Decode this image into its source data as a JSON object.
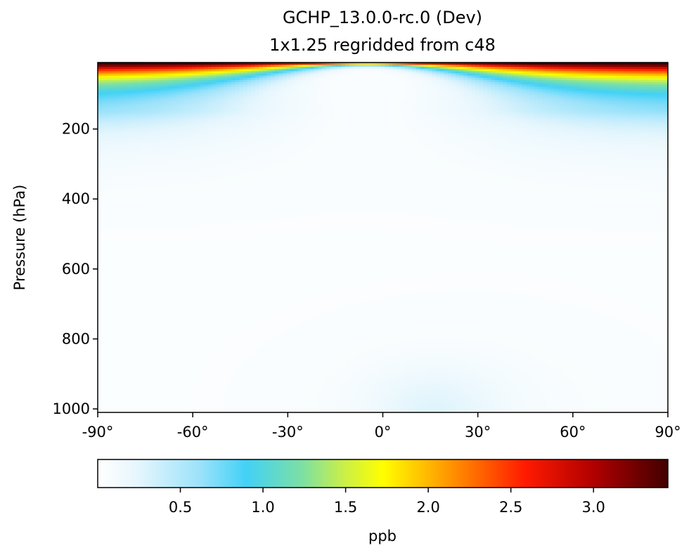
{
  "chart_data": {
    "type": "heatmap",
    "title": "GCHP_13.0.0-rc.0 (Dev)",
    "subtitle": "1x1.25 regridded from c48",
    "ylabel": "Pressure (hPa)",
    "xlabel": "",
    "xlim": [
      -90,
      90
    ],
    "ylim": [
      1010,
      10
    ],
    "x_ticks": [
      -90,
      -60,
      -30,
      0,
      30,
      60,
      90
    ],
    "x_tick_labels": [
      "-90°",
      "-60°",
      "-30°",
      "0°",
      "30°",
      "60°",
      "90°"
    ],
    "y_ticks": [
      200,
      400,
      600,
      800,
      1000
    ],
    "y_tick_labels": [
      "200",
      "400",
      "600",
      "800",
      "1000"
    ],
    "colorbar": {
      "label": "ppb",
      "range": [
        0.0,
        3.45
      ],
      "ticks": [
        0.5,
        1.0,
        1.5,
        2.0,
        2.5,
        3.0
      ],
      "tick_labels": [
        "0.5",
        "1.0",
        "1.5",
        "2.0",
        "2.5",
        "3.0"
      ],
      "colormap": "WhGrYlRd",
      "colormap_stops": [
        {
          "pos": 0.0,
          "color": "#ffffff"
        },
        {
          "pos": 0.07,
          "color": "#e6f6fd"
        },
        {
          "pos": 0.18,
          "color": "#9be2fa"
        },
        {
          "pos": 0.26,
          "color": "#42d1f7"
        },
        {
          "pos": 0.36,
          "color": "#7de0a2"
        },
        {
          "pos": 0.43,
          "color": "#c8ef4a"
        },
        {
          "pos": 0.5,
          "color": "#ffff00"
        },
        {
          "pos": 0.6,
          "color": "#ffa500"
        },
        {
          "pos": 0.75,
          "color": "#ff1a00"
        },
        {
          "pos": 0.87,
          "color": "#b00000"
        },
        {
          "pos": 1.0,
          "color": "#420000"
        }
      ]
    }
  }
}
